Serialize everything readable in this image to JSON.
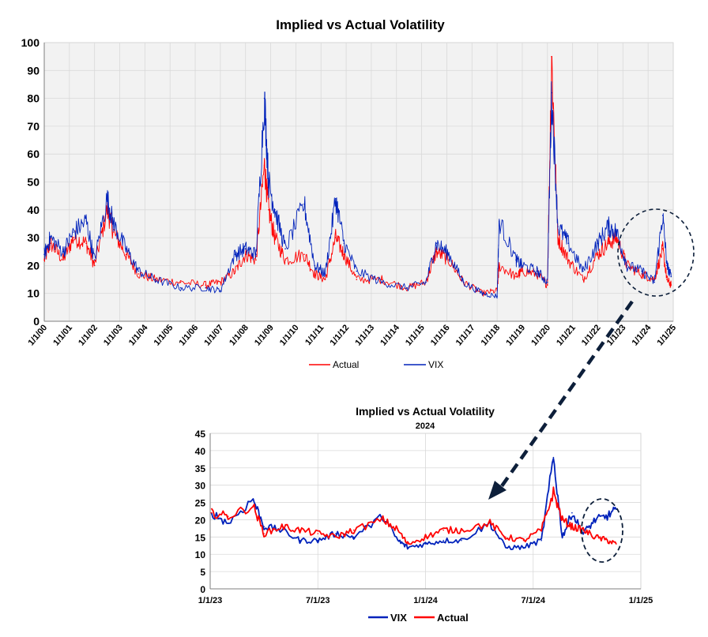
{
  "colors": {
    "actual": "#ff0000",
    "vix": "#0022bb",
    "plot_bg": "#f2f2f2",
    "grid": "#d9d9d9",
    "annotation": "#0d1f3a"
  },
  "chart_data": [
    {
      "type": "line",
      "title": "Implied vs Actual Volatility",
      "subtitle": "",
      "ylim": [
        0,
        100
      ],
      "yticks": [
        0,
        10,
        20,
        30,
        40,
        50,
        60,
        70,
        80,
        90,
        100
      ],
      "x_range": [
        "2000-01-01",
        "2025-01-01"
      ],
      "x_tick_labels": [
        "1/1/00",
        "1/1/01",
        "1/1/02",
        "1/1/03",
        "1/1/04",
        "1/1/05",
        "1/1/06",
        "1/1/07",
        "1/1/08",
        "1/1/09",
        "1/1/10",
        "1/1/11",
        "1/1/12",
        "1/1/13",
        "1/1/14",
        "1/1/15",
        "1/1/16",
        "1/1/17",
        "1/1/18",
        "1/1/19",
        "1/1/20",
        "1/1/21",
        "1/1/22",
        "1/1/23",
        "1/1/24",
        "1/1/25"
      ],
      "grid": true,
      "legend_position": "bottom",
      "series": [
        {
          "name": "Actual",
          "color": "#ff0000",
          "x": [
            "2000-01",
            "2000-04",
            "2000-10",
            "2001-03",
            "2001-09",
            "2002-01",
            "2002-07",
            "2002-10",
            "2003-04",
            "2003-10",
            "2004-06",
            "2005-06",
            "2006-06",
            "2007-01",
            "2007-08",
            "2008-01",
            "2008-06",
            "2008-10",
            "2008-12",
            "2009-03",
            "2009-08",
            "2010-05",
            "2010-10",
            "2011-03",
            "2011-08",
            "2011-12",
            "2012-06",
            "2013-06",
            "2014-06",
            "2015-03",
            "2015-08",
            "2016-02",
            "2016-09",
            "2017-06",
            "2018-01",
            "2018-02",
            "2018-10",
            "2019-01",
            "2019-08",
            "2020-01",
            "2020-03",
            "2020-06",
            "2020-11",
            "2021-06",
            "2022-01",
            "2022-06",
            "2022-10",
            "2023-03",
            "2023-10",
            "2024-04",
            "2024-08",
            "2024-10",
            "2024-12"
          ],
          "values": [
            22,
            28,
            22,
            30,
            28,
            20,
            40,
            32,
            24,
            17,
            15,
            14,
            13,
            14,
            18,
            24,
            22,
            56,
            40,
            30,
            22,
            24,
            17,
            15,
            30,
            24,
            15,
            15,
            12,
            14,
            25,
            22,
            14,
            10,
            11,
            20,
            16,
            18,
            17,
            13,
            95,
            30,
            22,
            15,
            24,
            28,
            30,
            20,
            17,
            15,
            26,
            15,
            13
          ]
        },
        {
          "name": "VIX",
          "color": "#0022bb",
          "x": [
            "2000-01",
            "2000-04",
            "2000-10",
            "2001-03",
            "2001-09",
            "2002-01",
            "2002-07",
            "2002-10",
            "2003-04",
            "2003-10",
            "2004-06",
            "2005-06",
            "2006-06",
            "2007-01",
            "2007-08",
            "2008-01",
            "2008-06",
            "2008-10",
            "2008-12",
            "2009-03",
            "2009-08",
            "2010-05",
            "2010-10",
            "2011-03",
            "2011-08",
            "2011-12",
            "2012-06",
            "2013-06",
            "2014-06",
            "2015-03",
            "2015-08",
            "2016-02",
            "2016-09",
            "2017-06",
            "2018-01",
            "2018-02",
            "2018-10",
            "2019-01",
            "2019-08",
            "2020-01",
            "2020-03",
            "2020-06",
            "2020-11",
            "2021-06",
            "2022-01",
            "2022-06",
            "2022-10",
            "2023-03",
            "2023-10",
            "2024-04",
            "2024-08",
            "2024-10",
            "2024-12"
          ],
          "values": [
            24,
            30,
            25,
            32,
            36,
            22,
            44,
            35,
            26,
            18,
            15,
            12,
            12,
            11,
            24,
            26,
            24,
            80,
            50,
            40,
            26,
            42,
            20,
            17,
            44,
            28,
            18,
            14,
            12,
            14,
            28,
            24,
            14,
            10,
            9,
            36,
            22,
            20,
            18,
            14,
            82,
            34,
            28,
            18,
            28,
            34,
            32,
            20,
            18,
            14,
            38,
            20,
            16
          ]
        }
      ]
    },
    {
      "type": "line",
      "title": "Implied vs Actual Volatility",
      "subtitle": "2024",
      "ylim": [
        0,
        45
      ],
      "yticks": [
        0,
        5,
        10,
        15,
        20,
        25,
        30,
        35,
        40,
        45
      ],
      "x_range": [
        "2023-01-01",
        "2025-01-01"
      ],
      "x_tick_labels": [
        "1/1/23",
        "7/1/23",
        "1/1/24",
        "7/1/24",
        "1/1/25"
      ],
      "grid": true,
      "legend_position": "bottom",
      "series": [
        {
          "name": "VIX",
          "color": "#0022bb",
          "x": [
            "2023-01-03",
            "2023-02-01",
            "2023-03-13",
            "2023-04-01",
            "2023-05-01",
            "2023-06-01",
            "2023-07-01",
            "2023-08-01",
            "2023-09-01",
            "2023-10-20",
            "2023-11-15",
            "2023-12-01",
            "2024-01-01",
            "2024-02-01",
            "2024-03-01",
            "2024-04-19",
            "2024-05-15",
            "2024-06-15",
            "2024-07-15",
            "2024-08-05",
            "2024-08-20",
            "2024-09-06",
            "2024-09-25",
            "2024-10-15",
            "2024-11-05",
            "2024-11-20"
          ],
          "values": [
            22,
            19,
            26,
            18,
            17,
            14,
            14,
            16,
            15,
            21,
            14,
            12,
            13,
            14,
            14,
            19,
            12,
            12,
            14,
            38,
            15,
            22,
            16,
            20,
            21,
            23
          ]
        },
        {
          "name": "Actual",
          "color": "#ff0000",
          "x": [
            "2023-01-03",
            "2023-02-01",
            "2023-03-13",
            "2023-04-01",
            "2023-05-01",
            "2023-06-01",
            "2023-07-01",
            "2023-08-01",
            "2023-09-01",
            "2023-10-20",
            "2023-11-15",
            "2023-12-01",
            "2024-01-01",
            "2024-02-01",
            "2024-03-01",
            "2024-04-19",
            "2024-05-15",
            "2024-06-15",
            "2024-07-15",
            "2024-08-05",
            "2024-08-20",
            "2024-09-06",
            "2024-09-25",
            "2024-10-15",
            "2024-11-05",
            "2024-11-20"
          ],
          "values": [
            22,
            21,
            24,
            16,
            18,
            17,
            16,
            15,
            17,
            20,
            17,
            13,
            15,
            17,
            17,
            19,
            15,
            14,
            17,
            28,
            20,
            18,
            17,
            15,
            14,
            13
          ]
        }
      ]
    }
  ]
}
